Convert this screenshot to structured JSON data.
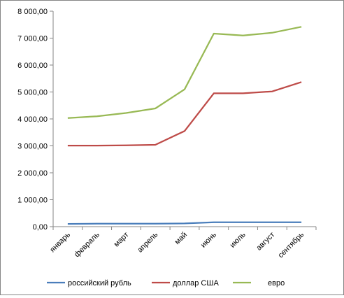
{
  "chart_data": {
    "type": "line",
    "categories": [
      "январь",
      "февраль",
      "март",
      "апрель",
      "май",
      "июнь",
      "июль",
      "август",
      "сентябрь"
    ],
    "series": [
      {
        "name": "российский рубль",
        "color": "#4a7ebb",
        "values": [
          100,
          110,
          110,
          110,
          120,
          160,
          160,
          160,
          160
        ]
      },
      {
        "name": "доллар США",
        "color": "#be4b48",
        "values": [
          3010,
          3010,
          3020,
          3040,
          3550,
          4950,
          4950,
          5020,
          5370
        ]
      },
      {
        "name": "евро",
        "color": "#98b954",
        "values": [
          4030,
          4100,
          4220,
          4390,
          5100,
          7170,
          7100,
          7200,
          7420
        ]
      }
    ],
    "yticks": [
      "0,00",
      "1 000,00",
      "2 000,00",
      "3 000,00",
      "4 000,00",
      "5 000,00",
      "6 000,00",
      "7 000,00",
      "8 000,00"
    ],
    "ylim": [
      0,
      8000
    ],
    "grid": false,
    "legend": "bottom"
  }
}
